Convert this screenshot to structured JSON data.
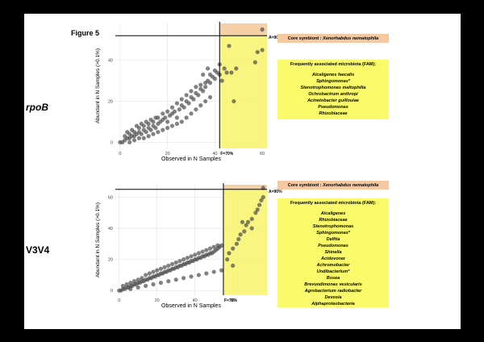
{
  "figure_title": "Figure 5",
  "row_labels": [
    "rpoB",
    "V3V4"
  ],
  "colors": {
    "core_box": "#f4c8a0",
    "fam_box": "#fafa6a",
    "fam_region": "#f7f36a",
    "core_region": "#f5cfa6",
    "points": "#4d4d4d"
  },
  "panels": [
    {
      "core_prefix": "Core symbiont : ",
      "core_name": "Xenorhabdus nematophila",
      "fam_title": "Frequently associated microbiota  (FAM):",
      "fam_items": [
        "Alcaligenes faecalis",
        "Sphingomonas*",
        "Stenotrophomonas maltophilia",
        "Ochrobactrum anthropi",
        "Acinetobacter guillouiae",
        "Pseudomonas",
        "Rhizobiaceae"
      ]
    },
    {
      "core_prefix": "Core symbiont : ",
      "core_name": "Xenorhabdus nematophila",
      "fam_title": "Frequently associated microbiota  (FAM):",
      "fam_items": [
        "Alcaligenes",
        "Rhizobiaceae",
        "Stenotrophomonas",
        "Sphingomonas*",
        "Delftia",
        "Pseudomonas",
        "Shinella",
        "Acidovorax",
        "Achromobacter",
        "Undibacterium*",
        "Bosea",
        "Brevundimonas vesicularis",
        "Agrobacterium radiobacter",
        "Devosia",
        "Alphaproteobacteria"
      ]
    }
  ],
  "chart_data": [
    {
      "type": "scatter",
      "xlabel": "Observed in N Samples",
      "ylabel": "Abundant in N Samples (>0.1%)",
      "xlim": [
        -2,
        62
      ],
      "ylim": [
        -3,
        58
      ],
      "xticks": [
        0,
        20,
        40,
        60
      ],
      "yticks": [
        0,
        20,
        40
      ],
      "grid": true,
      "f_threshold": 42,
      "f_label": "F=70%",
      "a_threshold": 52,
      "a_label": "A=90%",
      "points": [
        [
          0,
          0
        ],
        [
          1,
          0
        ],
        [
          2,
          1
        ],
        [
          3,
          2
        ],
        [
          4,
          2
        ],
        [
          5,
          3
        ],
        [
          6,
          3
        ],
        [
          7,
          4
        ],
        [
          8,
          5
        ],
        [
          9,
          4
        ],
        [
          10,
          6
        ],
        [
          11,
          5
        ],
        [
          12,
          7
        ],
        [
          13,
          6
        ],
        [
          14,
          8
        ],
        [
          15,
          7
        ],
        [
          3,
          5
        ],
        [
          5,
          6
        ],
        [
          7,
          8
        ],
        [
          9,
          9
        ],
        [
          11,
          10
        ],
        [
          13,
          11
        ],
        [
          15,
          12
        ],
        [
          16,
          9
        ],
        [
          17,
          10
        ],
        [
          18,
          11
        ],
        [
          19,
          12
        ],
        [
          20,
          10
        ],
        [
          21,
          13
        ],
        [
          22,
          14
        ],
        [
          23,
          15
        ],
        [
          24,
          12
        ],
        [
          25,
          16
        ],
        [
          26,
          18
        ],
        [
          27,
          17
        ],
        [
          28,
          20
        ],
        [
          29,
          19
        ],
        [
          30,
          22
        ],
        [
          31,
          21
        ],
        [
          32,
          24
        ],
        [
          33,
          23
        ],
        [
          34,
          26
        ],
        [
          35,
          25
        ],
        [
          36,
          27
        ],
        [
          37,
          30
        ],
        [
          38,
          29
        ],
        [
          39,
          32
        ],
        [
          40,
          31
        ],
        [
          41,
          34
        ],
        [
          42,
          33
        ],
        [
          43,
          30
        ],
        [
          44,
          36
        ],
        [
          45,
          34
        ],
        [
          47,
          34
        ],
        [
          49,
          36
        ],
        [
          48,
          20
        ],
        [
          57,
          39
        ],
        [
          58,
          44
        ],
        [
          60,
          45
        ],
        [
          60,
          55
        ],
        [
          4,
          0
        ],
        [
          6,
          1
        ],
        [
          8,
          2
        ],
        [
          10,
          2
        ],
        [
          12,
          3
        ],
        [
          14,
          4
        ],
        [
          16,
          5
        ],
        [
          18,
          6
        ],
        [
          20,
          7
        ],
        [
          22,
          8
        ],
        [
          24,
          9
        ],
        [
          26,
          10
        ],
        [
          28,
          12
        ],
        [
          30,
          14
        ],
        [
          32,
          16
        ],
        [
          34,
          18
        ],
        [
          36,
          20
        ],
        [
          38,
          22
        ],
        [
          2,
          3
        ],
        [
          4,
          4
        ],
        [
          6,
          5
        ],
        [
          8,
          7
        ],
        [
          10,
          8
        ],
        [
          12,
          9
        ],
        [
          14,
          10
        ],
        [
          16,
          12
        ],
        [
          18,
          14
        ],
        [
          20,
          15
        ],
        [
          22,
          17
        ],
        [
          24,
          19
        ],
        [
          26,
          21
        ],
        [
          28,
          23
        ],
        [
          30,
          25
        ],
        [
          32,
          27
        ],
        [
          34,
          28
        ],
        [
          36,
          29
        ],
        [
          38,
          33
        ],
        [
          40,
          35
        ],
        [
          46,
          47
        ],
        [
          35,
          33
        ],
        [
          37,
          36
        ],
        [
          42,
          38
        ]
      ]
    },
    {
      "type": "scatter",
      "xlabel": "Observed in N Samples",
      "ylabel": "Abundant in N Samples (>0.1%)",
      "xlim": [
        -2,
        78
      ],
      "ylim": [
        -3,
        68
      ],
      "xticks": [
        0,
        20,
        40,
        60
      ],
      "yticks": [
        0,
        20,
        40,
        60
      ],
      "grid": true,
      "f_threshold": 55,
      "f_label": "F=70%",
      "a_threshold": 65,
      "a_label": "A=90%",
      "points": [
        [
          0,
          0
        ],
        [
          1,
          0
        ],
        [
          2,
          1
        ],
        [
          3,
          1
        ],
        [
          4,
          2
        ],
        [
          5,
          2
        ],
        [
          6,
          3
        ],
        [
          7,
          3
        ],
        [
          8,
          4
        ],
        [
          9,
          4
        ],
        [
          10,
          5
        ],
        [
          11,
          5
        ],
        [
          12,
          6
        ],
        [
          13,
          6
        ],
        [
          14,
          7
        ],
        [
          15,
          7
        ],
        [
          16,
          8
        ],
        [
          17,
          8
        ],
        [
          18,
          9
        ],
        [
          19,
          9
        ],
        [
          20,
          10
        ],
        [
          21,
          10
        ],
        [
          22,
          11
        ],
        [
          23,
          11
        ],
        [
          24,
          12
        ],
        [
          25,
          12
        ],
        [
          26,
          13
        ],
        [
          27,
          13
        ],
        [
          28,
          14
        ],
        [
          29,
          14
        ],
        [
          30,
          15
        ],
        [
          31,
          15
        ],
        [
          32,
          16
        ],
        [
          33,
          16
        ],
        [
          34,
          17
        ],
        [
          35,
          17
        ],
        [
          36,
          18
        ],
        [
          37,
          18
        ],
        [
          38,
          19
        ],
        [
          39,
          19
        ],
        [
          40,
          20
        ],
        [
          41,
          20
        ],
        [
          42,
          21
        ],
        [
          43,
          21
        ],
        [
          44,
          22
        ],
        [
          45,
          22
        ],
        [
          46,
          23
        ],
        [
          47,
          23
        ],
        [
          48,
          24
        ],
        [
          49,
          24
        ],
        [
          50,
          25
        ],
        [
          51,
          26
        ],
        [
          52,
          27
        ],
        [
          53,
          28
        ],
        [
          54,
          29
        ],
        [
          2,
          3
        ],
        [
          4,
          4
        ],
        [
          6,
          5
        ],
        [
          8,
          6
        ],
        [
          10,
          7
        ],
        [
          12,
          8
        ],
        [
          14,
          10
        ],
        [
          16,
          11
        ],
        [
          18,
          12
        ],
        [
          20,
          13
        ],
        [
          22,
          14
        ],
        [
          24,
          15
        ],
        [
          26,
          16
        ],
        [
          28,
          17
        ],
        [
          30,
          18
        ],
        [
          32,
          19
        ],
        [
          34,
          20
        ],
        [
          36,
          21
        ],
        [
          38,
          22
        ],
        [
          40,
          23
        ],
        [
          42,
          24
        ],
        [
          44,
          25
        ],
        [
          46,
          26
        ],
        [
          48,
          27
        ],
        [
          50,
          28
        ],
        [
          52,
          29
        ],
        [
          6,
          1
        ],
        [
          10,
          2
        ],
        [
          14,
          3
        ],
        [
          18,
          4
        ],
        [
          22,
          5
        ],
        [
          26,
          6
        ],
        [
          30,
          7
        ],
        [
          34,
          8
        ],
        [
          38,
          9
        ],
        [
          42,
          10
        ],
        [
          46,
          11
        ],
        [
          50,
          12
        ],
        [
          54,
          13
        ],
        [
          57,
          20
        ],
        [
          58,
          24
        ],
        [
          60,
          27
        ],
        [
          62,
          30
        ],
        [
          63,
          33
        ],
        [
          64,
          36
        ],
        [
          66,
          38
        ],
        [
          67,
          42
        ],
        [
          68,
          44
        ],
        [
          70,
          46
        ],
        [
          72,
          50
        ],
        [
          73,
          52
        ],
        [
          74,
          55
        ],
        [
          75,
          58
        ],
        [
          76,
          60
        ],
        [
          76,
          66
        ],
        [
          60,
          16
        ],
        [
          65,
          44
        ],
        [
          70,
          40
        ]
      ]
    }
  ]
}
